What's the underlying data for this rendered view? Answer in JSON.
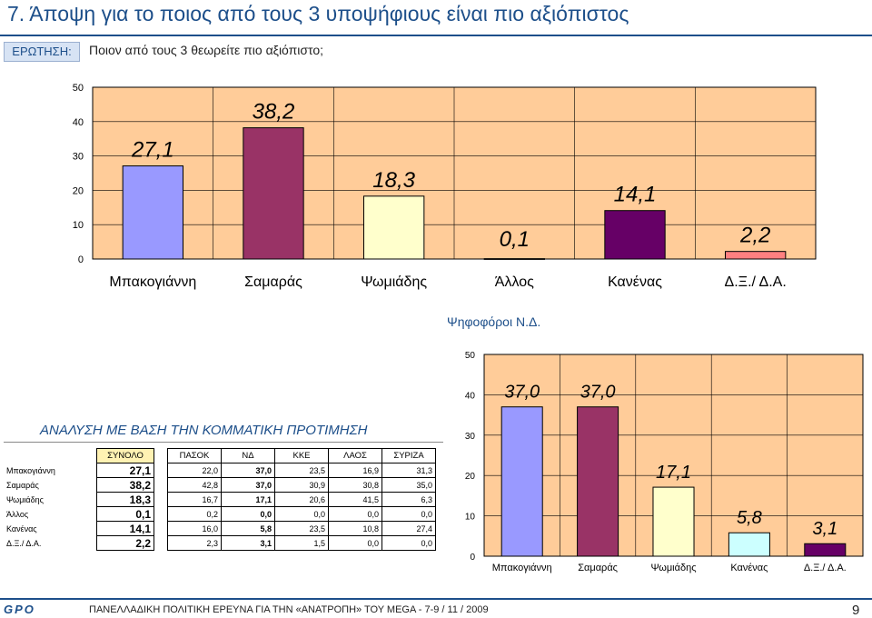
{
  "title": "7.  Άποψη για το ποιος από τους 3 υποψήφιους είναι πιο αξιόπιστος",
  "question": {
    "label": "ΕΡΩΤΗΣΗ:",
    "text": "Ποιον από τους 3 θεωρείτε πιο αξιόπιστο;"
  },
  "chart_data": [
    {
      "type": "bar",
      "categories": [
        "Μπακογιάννη",
        "Σαμαράς",
        "Ψωμιάδης",
        "Άλλος",
        "Κανένας",
        "Δ.Ξ./ Δ.Α."
      ],
      "values": [
        27.1,
        38.2,
        18.3,
        0.1,
        14.1,
        2.2
      ],
      "value_labels": [
        "27,1",
        "38,2",
        "18,3",
        "0,1",
        "14,1",
        "2,2"
      ],
      "yticks": [
        "0",
        "10",
        "20",
        "30",
        "40",
        "50"
      ],
      "ylim": [
        0,
        50
      ],
      "grid": true,
      "colors": [
        "#9999ff",
        "#993366",
        "#ffffcc",
        "#ccffff",
        "#660066",
        "#ff8080"
      ],
      "plot_bg": "#ffcc99"
    },
    {
      "type": "bar",
      "title": "Ψηφοφόροι Ν.Δ.",
      "categories": [
        "Μπακογιάννη",
        "Σαμαράς",
        "Ψωμιάδης",
        "Κανένας",
        "Δ.Ξ./ Δ.Α."
      ],
      "values": [
        37.0,
        37.0,
        17.1,
        5.8,
        3.1
      ],
      "value_labels": [
        "37,0",
        "37,0",
        "17,1",
        "5,8",
        "3,1"
      ],
      "yticks": [
        "0",
        "10",
        "20",
        "30",
        "40",
        "50"
      ],
      "ylim": [
        0,
        50
      ],
      "grid": true,
      "colors": [
        "#9999ff",
        "#993366",
        "#ffffcc",
        "#ccffff",
        "#660066"
      ],
      "plot_bg": "#ffcc99"
    },
    {
      "type": "table",
      "title": "ΑΝΑΛΥΣΗ ΜΕ ΒΑΣΗ ΤΗΝ ΚΟΜΜΑΤΙΚΗ ΠΡΟΤΙΜΗΣΗ",
      "total_header": "ΣΥΝΟΛΟ",
      "headers": [
        "ΠΑΣΟΚ",
        "ΝΔ",
        "ΚΚΕ",
        "ΛΑΟΣ",
        "ΣΥΡΙΖΑ"
      ],
      "rows": [
        {
          "label": "Μπακογιάννη",
          "total": "27,1",
          "values": [
            "22,0",
            "37,0",
            "23,5",
            "16,9",
            "31,3"
          ]
        },
        {
          "label": "Σαμαράς",
          "total": "38,2",
          "values": [
            "42,8",
            "37,0",
            "30,9",
            "30,8",
            "35,0"
          ]
        },
        {
          "label": "Ψωμιάδης",
          "total": "18,3",
          "values": [
            "16,7",
            "17,1",
            "20,6",
            "41,5",
            "6,3"
          ]
        },
        {
          "label": "Άλλος",
          "total": "0,1",
          "values": [
            "0,2",
            "0,0",
            "0,0",
            "0,0",
            "0,0"
          ]
        },
        {
          "label": "Κανένας",
          "total": "14,1",
          "values": [
            "16,0",
            "5,8",
            "23,5",
            "10,8",
            "27,4"
          ]
        },
        {
          "label": "Δ.Ξ./ Δ.Α.",
          "total": "2,2",
          "values": [
            "2,3",
            "3,1",
            "1,5",
            "0,0",
            "0,0"
          ]
        }
      ],
      "bold_column": 1
    }
  ],
  "footer": {
    "logo": "GPO",
    "text": "ΠΑΝΕΛΛΑΔΙΚΗ ΠΟΛΙΤΙΚΗ ΕΡΕΥΝΑ ΓΙΑ ΤΗΝ «ΑΝΑΤΡΟΠΗ» ΤΟΥ MEGA  -  7-9  / 11 / 2009",
    "page": "9"
  }
}
